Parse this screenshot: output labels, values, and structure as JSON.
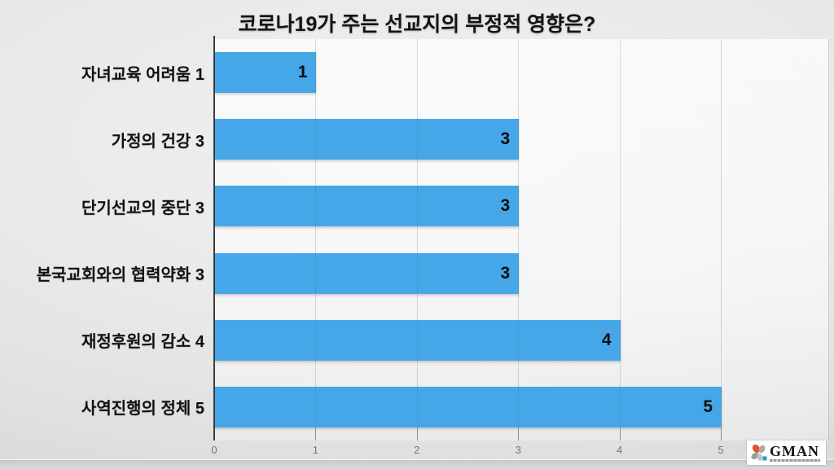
{
  "slide": {
    "title": "코로나19가 주는 선교지의 부정적 영향은?"
  },
  "chart_data": {
    "type": "bar",
    "orientation": "horizontal",
    "title": "코로나19가 주는 선교지의 부정적 영향은?",
    "categories": [
      "자녀교육 어려움 1",
      "가정의 건강 3",
      "단기선교의 중단 3",
      "본국교회와의 협력약화 3",
      "재정후원의 감소 4",
      "사역진행의 정체 5"
    ],
    "values": [
      1,
      3,
      3,
      3,
      4,
      5
    ],
    "data_labels": [
      "1",
      "3",
      "3",
      "3",
      "4",
      "5"
    ],
    "x_ticks": [
      "0",
      "1",
      "2",
      "3",
      "4",
      "5"
    ],
    "xlim": [
      0,
      5
    ],
    "grid": true,
    "legend": false,
    "data_label_position": "inside-end",
    "bar_color": "#45A7E8"
  },
  "logo": {
    "text": "GMAN",
    "colors": {
      "petal_orange": "#E0522F",
      "petal_gray": "#A9A9A9",
      "petal_gray_light": "#C2C2C2",
      "square_teal": "#1E9EC0"
    }
  },
  "colors": {
    "bar": "#45A7E8",
    "axis_line": "#3C3C3C",
    "gridline": "#D2D2D2",
    "tick_label": "#757575",
    "title_text": "#141414",
    "label_text": "#111111",
    "plot_background": "#F7F7F7",
    "slide_background": "#E7E7E7"
  }
}
